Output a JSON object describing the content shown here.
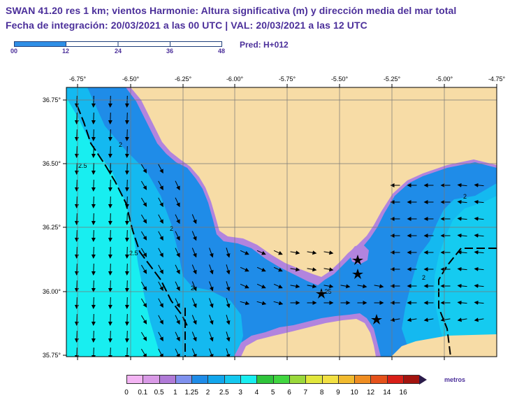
{
  "title": {
    "line1": "SWAN 41.20 res 1 km; vientos Harmonie: Altura significativa (m) y dirección media del mar total",
    "line2": "Fecha de integración: 20/03/2021 a las 00 UTC | VAL: 20/03/2021 a las 12 UTC"
  },
  "forecast_ramp": {
    "labels": [
      "00",
      "12",
      "24",
      "36",
      "48"
    ],
    "current_hour": 12,
    "max_hour": 48,
    "fill_color": "#2f8fe6"
  },
  "pred_label": "Pred: H+012",
  "map": {
    "lon_labels": [
      "-6.75°",
      "-6.50°",
      "-6.25°",
      "-6.00°",
      "-5.75°",
      "-5.50°",
      "-5.25°",
      "-5.00°",
      "-4.75°"
    ],
    "lat_labels": [
      "36.75°",
      "36.50°",
      "36.25°",
      "36.00°",
      "35.75°"
    ],
    "contour_labels": [
      "2",
      "2.5",
      "2",
      "2.5",
      "2",
      "2",
      ".25",
      "2"
    ],
    "colors": {
      "land": "#f7dca6",
      "band_05_1": "#b284de",
      "band_1_125": "#7d8ff2",
      "band_125_15": "#1f8ce8",
      "band_2_25": "#14b9f0",
      "band_25_3": "#18eef0"
    }
  },
  "colorbar": {
    "labels": [
      "0",
      "0.1",
      "0.5",
      "1",
      "1.25",
      "2",
      "2.5",
      "3",
      "4",
      "5",
      "6",
      "7",
      "8",
      "9",
      "10",
      "12",
      "14",
      "16"
    ],
    "colors": [
      "#f3b4f3",
      "#d99ae6",
      "#b07ad7",
      "#7f91ee",
      "#1f8ce8",
      "#12a6ec",
      "#15c8ef",
      "#19eef0",
      "#2fc43b",
      "#41d640",
      "#9ad83b",
      "#e1e63c",
      "#f2e043",
      "#f1ba2f",
      "#ef8d22",
      "#e5521b",
      "#d81f18",
      "#a3140f"
    ],
    "unit": "metros"
  }
}
